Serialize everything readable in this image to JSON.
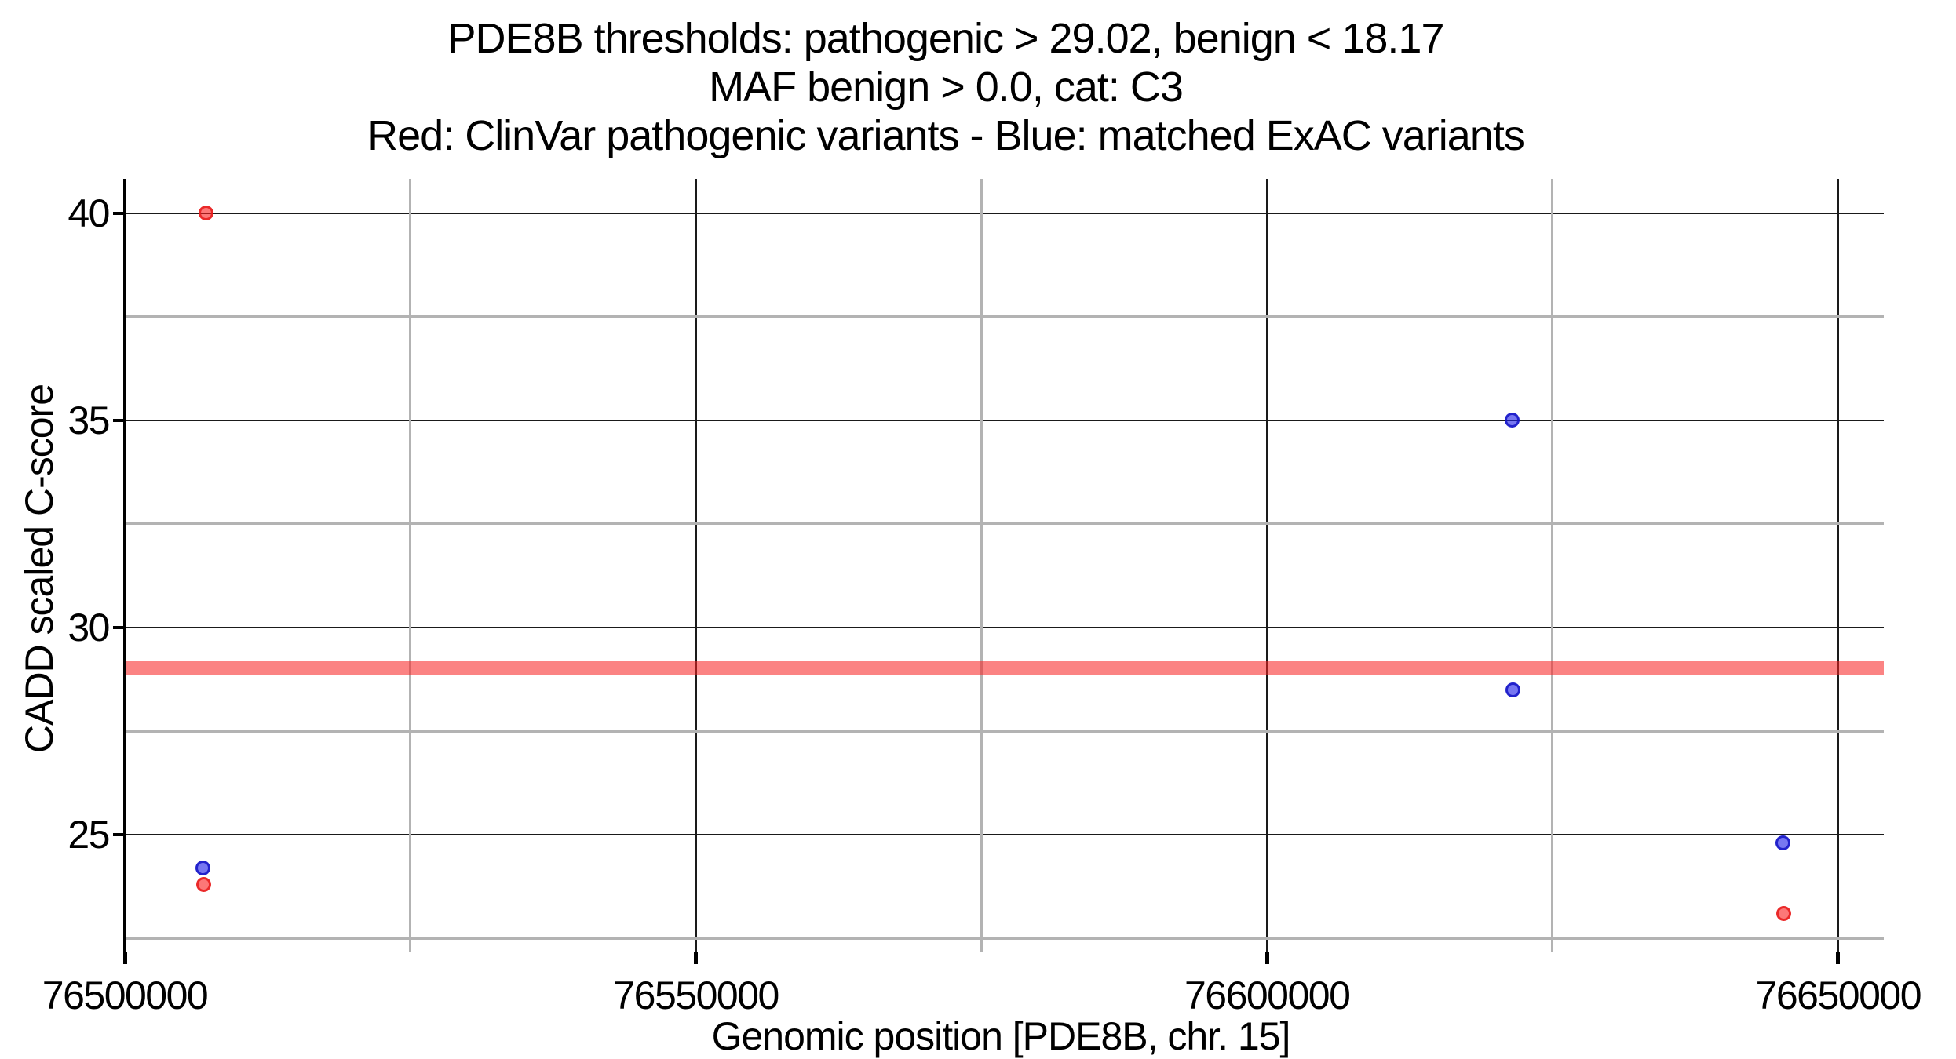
{
  "title": {
    "line1": "PDE8B thresholds: pathogenic > 29.02, benign < 18.17",
    "line2": "MAF benign > 0.0, cat: C3",
    "line3": "Red: ClinVar pathogenic variants - Blue: matched ExAC variants"
  },
  "chart_data": {
    "type": "scatter",
    "title": "PDE8B thresholds: pathogenic > 29.02, benign < 18.17",
    "subtitle": "MAF benign > 0.0, cat: C3",
    "legend_note": "Red: ClinVar pathogenic variants - Blue: matched ExAC variants",
    "xlabel": "Genomic position [PDE8B, chr. 15]",
    "ylabel": "CADD scaled C-score",
    "xlim": [
      76500000,
      76654000
    ],
    "ylim": [
      22.18,
      40.83
    ],
    "grid": "major black, minor gray",
    "legend_position": "none",
    "x_major_ticks": [
      {
        "value": 76500000,
        "label": "76500000"
      },
      {
        "value": 76550000,
        "label": "76550000"
      },
      {
        "value": 76600000,
        "label": "76600000"
      },
      {
        "value": 76650000,
        "label": "76650000"
      }
    ],
    "x_minor_ticks": [
      76525000,
      76575000,
      76625000
    ],
    "y_major_ticks": [
      {
        "value": 25,
        "label": "25"
      },
      {
        "value": 30,
        "label": "30"
      },
      {
        "value": 35,
        "label": "35"
      },
      {
        "value": 40,
        "label": "40"
      }
    ],
    "y_minor_ticks": [
      22.5,
      27.5,
      32.5,
      37.5
    ],
    "threshold_line": {
      "value": 29.02,
      "meaning": "pathogenic threshold",
      "color": "#f82222"
    },
    "series": [
      {
        "name": "ClinVar pathogenic variants",
        "color_class": "red",
        "color": "#fa1c1c",
        "points": [
          {
            "x": 76507140,
            "y": 40.0
          },
          {
            "x": 76506900,
            "y": 23.8
          },
          {
            "x": 76645260,
            "y": 23.1
          }
        ]
      },
      {
        "name": "matched ExAC variants",
        "color_class": "blue",
        "color": "#1c1ce8",
        "points": [
          {
            "x": 76506820,
            "y": 24.2
          },
          {
            "x": 76621430,
            "y": 35.0
          },
          {
            "x": 76621500,
            "y": 28.5
          },
          {
            "x": 76645190,
            "y": 24.8
          }
        ]
      }
    ]
  }
}
